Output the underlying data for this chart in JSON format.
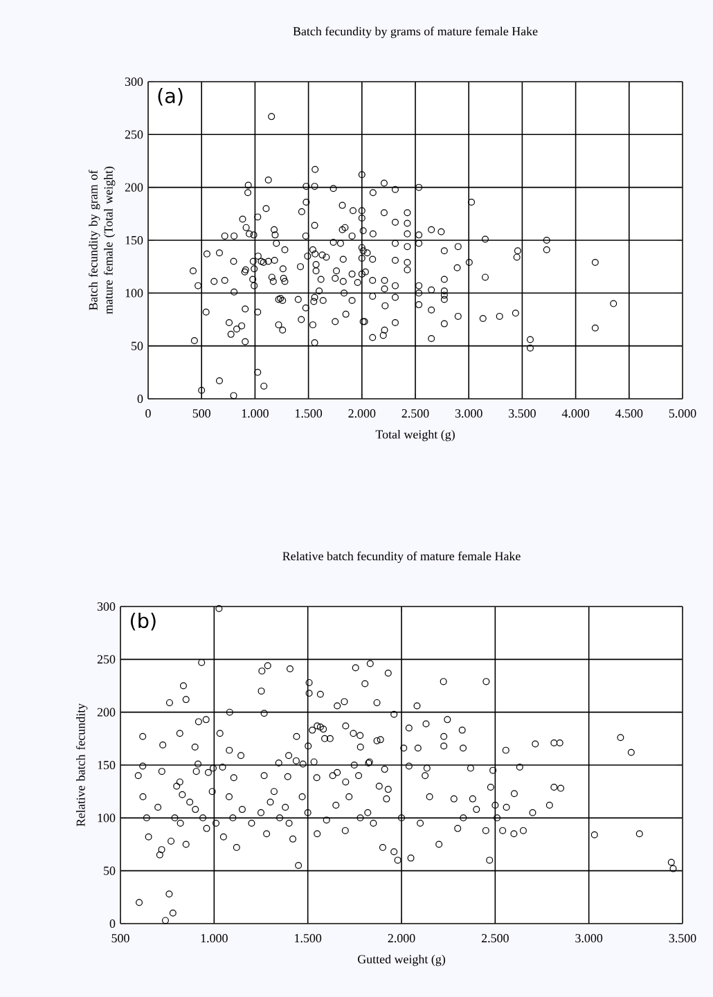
{
  "chart_data": [
    {
      "type": "scatter",
      "title": "Batch fecundity by grams of mature female Hake",
      "xlabel": "Total weight (g)",
      "ylabel": "Batch fecundity by gram of mature female (Total weight)",
      "annotations": [
        "(a)"
      ],
      "xlim": [
        0,
        5000
      ],
      "ylim": [
        0,
        300
      ],
      "xticks": [
        0,
        500,
        {
          "value": 1000,
          "label": "1.000"
        },
        {
          "value": 1500,
          "label": "1.500"
        },
        {
          "value": 2000,
          "label": "2.000"
        },
        {
          "value": 2500,
          "label": "2.500"
        },
        {
          "value": 3000,
          "label": "3.000"
        },
        {
          "value": 3500,
          "label": "3.500"
        },
        {
          "value": 4000,
          "label": "4.000"
        },
        {
          "value": 4500,
          "label": "4.500"
        },
        {
          "value": 5000,
          "label": "5.000"
        }
      ],
      "yticks": [
        0,
        50,
        100,
        150,
        200,
        250,
        300
      ],
      "grid": true,
      "marker": "circle",
      "series": [
        {
          "color": "#000000",
          "x": [
            1154,
            433,
            467,
            542,
            421,
            717,
            804,
            667,
            550,
            617,
            717,
            800,
            804,
            758,
            775,
            829,
            875,
            908,
            908,
            884,
            917,
            946,
            988,
            937,
            933,
            904,
            912,
            983,
            992,
            992,
            979,
            1025,
            1029,
            1058,
            1079,
            1125,
            1104,
            1125,
            1025,
            1025,
            1083,
            1158,
            1171,
            1179,
            1188,
            1183,
            1200,
            1221,
            1238,
            1258,
            1221,
            1258,
            1267,
            1279,
            1262,
            1279,
            1437,
            1479,
            1479,
            1562,
            1558,
            1558,
            1541,
            1492,
            1475,
            1425,
            1404,
            1433,
            1475,
            1541,
            1558,
            1550,
            1558,
            1571,
            1571,
            1562,
            1600,
            1617,
            1637,
            1629,
            1667,
            1733,
            1733,
            1750,
            1750,
            1762,
            1817,
            1825,
            1825,
            1833,
            1850,
            1908,
            1817,
            1842,
            1800,
            1917,
            1908,
            2000,
            2000,
            2025,
            2000,
            2033,
            2050,
            2208,
            2104,
            2312,
            2533,
            3025,
            2000,
            2208,
            2312,
            2425,
            2425,
            2425,
            2012,
            2104,
            2533,
            2650,
            2742,
            2000,
            2012,
            2312,
            2425,
            2533,
            2100,
            2312,
            2425,
            2425,
            2771,
            2900,
            3004,
            3154,
            2892,
            2771,
            3154,
            3458,
            3450,
            3729,
            3729,
            4183,
            4354,
            4183,
            3575,
            3575,
            3438,
            3288,
            3133,
            2900,
            2771,
            2650,
            2650,
            2533,
            2533,
            2650,
            2771,
            2771,
            2771,
            2000,
            2100,
            2100,
            2212,
            2212,
            2217,
            2312,
            2312,
            2312,
            2212,
            2200,
            2100,
            2012,
            2533,
            1908,
            1960,
            667,
            500,
            800
          ],
          "values": [
            267,
            55,
            107,
            82,
            121,
            154,
            154,
            138,
            137,
            111,
            112,
            130,
            101,
            72,
            61,
            66,
            69,
            85,
            54,
            170,
            162,
            156,
            155,
            202,
            195,
            120,
            122,
            130,
            123,
            107,
            113,
            172,
            135,
            130,
            129,
            130,
            180,
            207,
            82,
            25,
            12,
            115,
            111,
            160,
            155,
            131,
            147,
            94,
            95,
            93,
            70,
            65,
            114,
            111,
            123,
            141,
            177,
            186,
            201,
            217,
            201,
            164,
            141,
            135,
            154,
            125,
            94,
            75,
            86,
            70,
            53,
            92,
            96,
            127,
            121,
            137,
            102,
            113,
            93,
            136,
            134,
            148,
            199,
            73,
            114,
            121,
            183,
            132,
            111,
            100,
            80,
            93,
            160,
            162,
            147,
            178,
            154,
            212,
            171,
            73,
            133,
            120,
            138,
            204,
            195,
            198,
            200,
            186,
            178,
            176,
            167,
            176,
            166,
            156,
            159,
            156,
            155,
            160,
            158,
            143,
            140,
            147,
            144,
            147,
            132,
            131,
            129,
            122,
            140,
            144,
            129,
            151,
            124,
            113,
            115,
            140,
            134,
            150,
            141,
            129,
            90,
            67,
            56,
            48,
            81,
            78,
            76,
            78,
            71,
            57,
            84,
            107,
            89,
            103,
            102,
            98,
            94,
            118,
            112,
            97,
            112,
            104,
            88,
            107,
            96,
            72,
            65,
            60,
            58,
            73,
            100,
            118,
            110,
            17,
            8,
            3
          ]
        }
      ]
    },
    {
      "type": "scatter",
      "title": "Relative batch fecundity of mature female Hake",
      "xlabel": "Gutted weight (g)",
      "ylabel": "Relative batch fecundity",
      "annotations": [
        "(b)"
      ],
      "xlim": [
        500,
        3500
      ],
      "ylim": [
        0,
        300
      ],
      "xticks": [
        500,
        {
          "value": 1000,
          "label": "1.000"
        },
        {
          "value": 1500,
          "label": "1.500"
        },
        {
          "value": 2000,
          "label": "2.000"
        },
        {
          "value": 2500,
          "label": "2.500"
        },
        {
          "value": 3000,
          "label": "3.000"
        },
        {
          "value": 3500,
          "label": "3.500"
        }
      ],
      "yticks": [
        0,
        50,
        100,
        150,
        200,
        250,
        300
      ],
      "grid": true,
      "marker": "circle",
      "series": [
        {
          "color": "#000000",
          "x": [
            1026,
            933,
            836,
            850,
            762,
            619,
            817,
            917,
            957,
            726,
            619,
            595,
            721,
            817,
            898,
            914,
            969,
            905,
            995,
            1045,
            1031,
            1083,
            1081,
            1143,
            1105,
            1267,
            1252,
            1255,
            1286,
            1405,
            1267,
            1345,
            1398,
            1393,
            1440,
            1438,
            1474,
            1507,
            1507,
            1567,
            1502,
            1524,
            1550,
            1567,
            1583,
            1590,
            1619,
            1533,
            1548,
            1633,
            1657,
            1657,
            1695,
            1702,
            1743,
            1779,
            1755,
            1805,
            1833,
            1869,
            1781,
            1748,
            1771,
            1824,
            1869,
            1702,
            1929,
            2224,
            2452,
            2083,
            1960,
            2040,
            2131,
            2245,
            2324,
            2226,
            2226,
            2329,
            1888,
            2012,
            2088,
            2557,
            2714,
            2814,
            2845,
            3169,
            3226,
            1910,
            2040,
            2136,
            2126,
            2369,
            2488,
            2631,
            2476,
            2602,
            2814,
            1881,
            1929,
            1829,
            600,
            620,
            640,
            650,
            700,
            710,
            720,
            740,
            760,
            770,
            780,
            790,
            800,
            820,
            830,
            850,
            870,
            900,
            940,
            960,
            990,
            1010,
            1050,
            1080,
            1100,
            1120,
            1150,
            1200,
            1250,
            1280,
            1300,
            1320,
            1350,
            1380,
            1400,
            1420,
            1450,
            1470,
            1500,
            1550,
            1600,
            1650,
            1700,
            1720,
            1780,
            1820,
            1850,
            1900,
            1920,
            1960,
            1980,
            2000,
            2050,
            2100,
            2150,
            2200,
            2280,
            2300,
            2330,
            2380,
            2400,
            2450,
            2470,
            2500,
            2510,
            2540,
            2560,
            2600,
            2650,
            2700,
            2790,
            2850,
            3030,
            3270,
            3440,
            3450
          ],
          "values": [
            298,
            247,
            225,
            212,
            209,
            177,
            180,
            191,
            193,
            169,
            149,
            140,
            144,
            134,
            167,
            151,
            143,
            144,
            147,
            148,
            180,
            200,
            164,
            159,
            138,
            199,
            220,
            239,
            244,
            241,
            140,
            152,
            159,
            139,
            177,
            154,
            151,
            228,
            218,
            217,
            168,
            183,
            187,
            186,
            184,
            175,
            175,
            153,
            138,
            140,
            143,
            206,
            210,
            187,
            180,
            178,
            242,
            227,
            246,
            209,
            167,
            150,
            140,
            152,
            173,
            134,
            237,
            229,
            229,
            206,
            198,
            185,
            189,
            193,
            183,
            177,
            168,
            166,
            174,
            166,
            166,
            164,
            170,
            171,
            171,
            176,
            162,
            146,
            149,
            147,
            140,
            147,
            145,
            148,
            129,
            123,
            129,
            130,
            127,
            153,
            20,
            120,
            100,
            82,
            110,
            65,
            70,
            3,
            28,
            78,
            10,
            100,
            130,
            95,
            122,
            75,
            115,
            108,
            100,
            90,
            125,
            95,
            82,
            120,
            100,
            72,
            108,
            95,
            105,
            85,
            115,
            125,
            100,
            110,
            95,
            80,
            55,
            120,
            105,
            85,
            98,
            112,
            88,
            120,
            100,
            105,
            95,
            72,
            118,
            68,
            60,
            100,
            62,
            95,
            120,
            75,
            118,
            90,
            100,
            118,
            108,
            88,
            60,
            112,
            100,
            88,
            110,
            85,
            88,
            105,
            112,
            128,
            84,
            85,
            58,
            52
          ]
        }
      ]
    }
  ]
}
